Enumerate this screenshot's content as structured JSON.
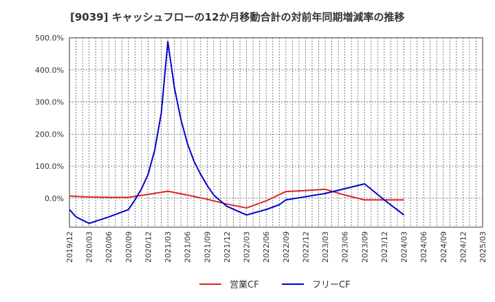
{
  "chart_data": {
    "type": "line",
    "title": "[9039]  キャッシュフローの12か月移動合計の対前年同期増減率の推移",
    "xlabel": "",
    "ylabel": "",
    "ylim": [
      -90,
      500
    ],
    "y_ticks": [
      "500.0%",
      "400.0%",
      "300.0%",
      "200.0%",
      "100.0%",
      "0.0%"
    ],
    "y_tick_values": [
      500,
      400,
      300,
      200,
      100,
      0
    ],
    "x_ticks": [
      "2019/12",
      "2020/03",
      "2020/06",
      "2020/09",
      "2020/12",
      "2021/03",
      "2021/06",
      "2021/09",
      "2021/12",
      "2022/03",
      "2022/06",
      "2022/09",
      "2022/12",
      "2023/03",
      "2023/06",
      "2023/09",
      "2023/12",
      "2024/03",
      "2024/06",
      "2024/09",
      "2024/12",
      "2025/03"
    ],
    "grid": true,
    "legend_position": "bottom",
    "series": [
      {
        "name": "営業CF",
        "color": "#dd2222",
        "points": [
          [
            "2019/12",
            7
          ],
          [
            "2020/03",
            4
          ],
          [
            "2020/06",
            3
          ],
          [
            "2020/09",
            3
          ],
          [
            "2020/12",
            12
          ],
          [
            "2021/03",
            22
          ],
          [
            "2021/06",
            10
          ],
          [
            "2021/09",
            -3
          ],
          [
            "2021/12",
            -18
          ],
          [
            "2022/03",
            -30
          ],
          [
            "2022/06",
            -8
          ],
          [
            "2022/09",
            21
          ],
          [
            "2022/12",
            24
          ],
          [
            "2023/03",
            28
          ],
          [
            "2023/06",
            10
          ],
          [
            "2023/09",
            -5
          ],
          [
            "2023/12",
            -5
          ],
          [
            "2024/03",
            -5
          ]
        ]
      },
      {
        "name": "フリーCF",
        "color": "#0000cc",
        "points": [
          [
            "2019/12",
            -35
          ],
          [
            "2020/01",
            -58
          ],
          [
            "2020/03",
            -78
          ],
          [
            "2020/06",
            -58
          ],
          [
            "2020/09",
            -35
          ],
          [
            "2020/10",
            -5
          ],
          [
            "2020/11",
            30
          ],
          [
            "2020/12",
            75
          ],
          [
            "2021/01",
            150
          ],
          [
            "2021/02",
            265
          ],
          [
            "2021/03",
            488
          ],
          [
            "2021/04",
            345
          ],
          [
            "2021/05",
            245
          ],
          [
            "2021/06",
            170
          ],
          [
            "2021/07",
            115
          ],
          [
            "2021/08",
            75
          ],
          [
            "2021/09",
            40
          ],
          [
            "2021/10",
            10
          ],
          [
            "2021/12",
            -25
          ],
          [
            "2022/03",
            -52
          ],
          [
            "2022/06",
            -35
          ],
          [
            "2022/08",
            -20
          ],
          [
            "2022/09",
            -5
          ],
          [
            "2022/12",
            5
          ],
          [
            "2023/03",
            15
          ],
          [
            "2023/06",
            30
          ],
          [
            "2023/09",
            45
          ],
          [
            "2023/12",
            -5
          ],
          [
            "2024/03",
            -52
          ]
        ]
      }
    ]
  }
}
